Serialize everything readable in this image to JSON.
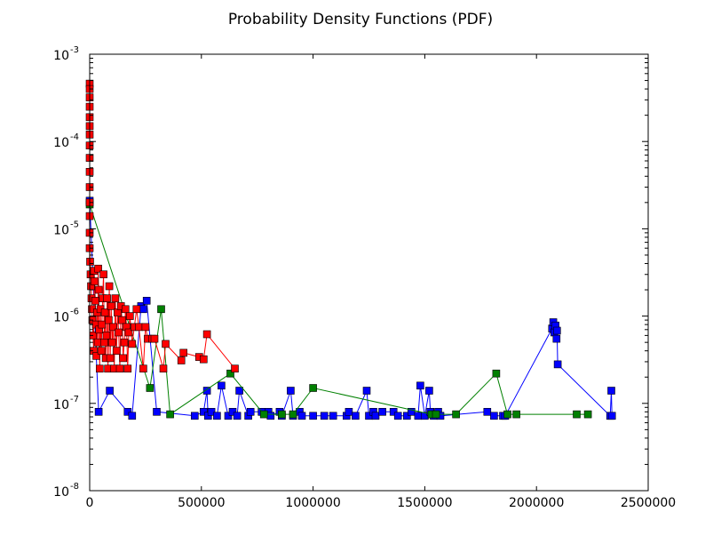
{
  "chart_data": {
    "type": "scatter",
    "title": "Probability Density Functions (PDF)",
    "xlabel": "",
    "ylabel": "",
    "xlim": [
      0,
      2500000
    ],
    "ylim": [
      1e-08,
      0.001
    ],
    "yscale": "log",
    "grid": false,
    "x_ticks": [
      0,
      500000,
      1000000,
      1500000,
      2000000,
      2500000
    ],
    "x_tick_labels": [
      "0",
      "500000",
      "1000000",
      "1500000",
      "2000000",
      "2500000"
    ],
    "y_ticks": [
      {
        "value": 1e-08,
        "base": "10",
        "exp": "-8"
      },
      {
        "value": 1e-07,
        "base": "10",
        "exp": "-7"
      },
      {
        "value": 1e-06,
        "base": "10",
        "exp": "-6"
      },
      {
        "value": 1e-05,
        "base": "10",
        "exp": "-5"
      },
      {
        "value": 0.0001,
        "base": "10",
        "exp": "-4"
      },
      {
        "value": 0.001,
        "base": "10",
        "exp": "-3"
      }
    ],
    "series": [
      {
        "color": "#0000ff",
        "marker": "square",
        "line": true,
        "points": [
          [
            0,
            2.1e-05
          ],
          [
            40000,
            8e-08
          ],
          [
            90000,
            1.4e-07
          ],
          [
            170000,
            8e-08
          ],
          [
            190000,
            7.2e-08
          ],
          [
            230000,
            1.3e-06
          ],
          [
            240000,
            1.2e-06
          ],
          [
            255000,
            1.5e-06
          ],
          [
            300000,
            8e-08
          ],
          [
            470000,
            7.2e-08
          ],
          [
            510000,
            8e-08
          ],
          [
            525000,
            1.4e-07
          ],
          [
            530000,
            7.2e-08
          ],
          [
            545000,
            8e-08
          ],
          [
            570000,
            7.2e-08
          ],
          [
            590000,
            1.6e-07
          ],
          [
            620000,
            7.2e-08
          ],
          [
            640000,
            8e-08
          ],
          [
            660000,
            7.2e-08
          ],
          [
            670000,
            1.4e-07
          ],
          [
            710000,
            7.2e-08
          ],
          [
            720000,
            8e-08
          ],
          [
            770000,
            8e-08
          ],
          [
            800000,
            8e-08
          ],
          [
            810000,
            7.2e-08
          ],
          [
            850000,
            8e-08
          ],
          [
            860000,
            7.2e-08
          ],
          [
            900000,
            1.4e-07
          ],
          [
            910000,
            7.2e-08
          ],
          [
            940000,
            8e-08
          ],
          [
            950000,
            7.2e-08
          ],
          [
            1000000,
            7.2e-08
          ],
          [
            1050000,
            7.2e-08
          ],
          [
            1090000,
            7.2e-08
          ],
          [
            1150000,
            7.2e-08
          ],
          [
            1160000,
            8e-08
          ],
          [
            1190000,
            7.2e-08
          ],
          [
            1240000,
            1.4e-07
          ],
          [
            1250000,
            7.2e-08
          ],
          [
            1270000,
            8e-08
          ],
          [
            1280000,
            7.2e-08
          ],
          [
            1310000,
            8e-08
          ],
          [
            1360000,
            8e-08
          ],
          [
            1380000,
            7.2e-08
          ],
          [
            1420000,
            7.2e-08
          ],
          [
            1440000,
            8e-08
          ],
          [
            1470000,
            7.2e-08
          ],
          [
            1480000,
            1.6e-07
          ],
          [
            1500000,
            7.2e-08
          ],
          [
            1520000,
            1.4e-07
          ],
          [
            1525000,
            8e-08
          ],
          [
            1540000,
            7.2e-08
          ],
          [
            1560000,
            8e-08
          ],
          [
            1570000,
            7.2e-08
          ],
          [
            1780000,
            8e-08
          ],
          [
            1810000,
            7.2e-08
          ],
          [
            1850000,
            7.2e-08
          ],
          [
            1860000,
            7.2e-08
          ],
          [
            2070000,
            7.2e-07
          ],
          [
            2075000,
            8.5e-07
          ],
          [
            2080000,
            6.5e-07
          ],
          [
            2085000,
            7.8e-07
          ],
          [
            2090000,
            5.5e-07
          ],
          [
            2092000,
            6.8e-07
          ],
          [
            2095000,
            2.8e-07
          ],
          [
            2330000,
            7.2e-08
          ],
          [
            2335000,
            1.4e-07
          ],
          [
            2338000,
            7.2e-08
          ]
        ]
      },
      {
        "color": "#008000",
        "marker": "square",
        "line": true,
        "points": [
          [
            0,
            1.9e-05
          ],
          [
            270000,
            1.5e-07
          ],
          [
            320000,
            1.2e-06
          ],
          [
            360000,
            7.5e-08
          ],
          [
            630000,
            2.2e-07
          ],
          [
            780000,
            7.5e-08
          ],
          [
            860000,
            7.5e-08
          ],
          [
            910000,
            7.5e-08
          ],
          [
            1000000,
            1.5e-07
          ],
          [
            1530000,
            7.5e-08
          ],
          [
            1550000,
            7.5e-08
          ],
          [
            1640000,
            7.5e-08
          ],
          [
            1820000,
            2.2e-07
          ],
          [
            1870000,
            7.5e-08
          ],
          [
            1910000,
            7.5e-08
          ],
          [
            2180000,
            7.5e-08
          ],
          [
            2230000,
            7.5e-08
          ]
        ]
      },
      {
        "color": "#ff0000",
        "marker": "square",
        "line": true,
        "points": [
          [
            0,
            0.00046
          ],
          [
            0,
            0.0004
          ],
          [
            0,
            0.00032
          ],
          [
            0,
            0.00025
          ],
          [
            0,
            0.00019
          ],
          [
            0,
            0.00015
          ],
          [
            0,
            0.00012
          ],
          [
            0,
            9e-05
          ],
          [
            0,
            6.5e-05
          ],
          [
            0,
            4.5e-05
          ],
          [
            0,
            3e-05
          ],
          [
            0,
            2e-05
          ],
          [
            0,
            1.4e-05
          ],
          [
            0,
            9e-06
          ],
          [
            0,
            6e-06
          ],
          [
            2000,
            4.2e-06
          ],
          [
            4000,
            3e-06
          ],
          [
            6000,
            2.2e-06
          ],
          [
            8000,
            1.6e-06
          ],
          [
            10000,
            1.2e-06
          ],
          [
            12000,
            9e-07
          ],
          [
            15000,
            6e-07
          ],
          [
            18000,
            4e-07
          ],
          [
            20000,
            3.3e-06
          ],
          [
            22000,
            2.5e-06
          ],
          [
            25000,
            1.5e-06
          ],
          [
            28000,
            8e-07
          ],
          [
            30000,
            3.5e-07
          ],
          [
            33000,
            1.1e-06
          ],
          [
            36000,
            5e-07
          ],
          [
            38000,
            3.5e-06
          ],
          [
            40000,
            2e-06
          ],
          [
            42000,
            7e-07
          ],
          [
            45000,
            2.5e-07
          ],
          [
            48000,
            1.2e-06
          ],
          [
            52000,
            4e-07
          ],
          [
            55000,
            8e-07
          ],
          [
            58000,
            1.6e-06
          ],
          [
            62000,
            3e-06
          ],
          [
            65000,
            5e-07
          ],
          [
            68000,
            1.1e-06
          ],
          [
            72000,
            3.3e-07
          ],
          [
            75000,
            6e-07
          ],
          [
            78000,
            1.6e-06
          ],
          [
            82000,
            2.5e-07
          ],
          [
            85000,
            9e-07
          ],
          [
            88000,
            2.2e-06
          ],
          [
            92000,
            3.3e-07
          ],
          [
            96000,
            1.3e-06
          ],
          [
            100000,
            5e-07
          ],
          [
            105000,
            7.5e-07
          ],
          [
            110000,
            2.5e-07
          ],
          [
            115000,
            1.6e-06
          ],
          [
            120000,
            4e-07
          ],
          [
            125000,
            1.1e-06
          ],
          [
            130000,
            6.5e-07
          ],
          [
            135000,
            2.5e-07
          ],
          [
            140000,
            1.3e-06
          ],
          [
            145000,
            9e-07
          ],
          [
            150000,
            3.3e-07
          ],
          [
            155000,
            5e-07
          ],
          [
            160000,
            1.2e-06
          ],
          [
            165000,
            7.5e-07
          ],
          [
            170000,
            2.5e-07
          ],
          [
            175000,
            6.5e-07
          ],
          [
            180000,
            1e-06
          ],
          [
            190000,
            4.8e-07
          ],
          [
            200000,
            7.5e-07
          ],
          [
            210000,
            1.2e-06
          ],
          [
            220000,
            7.5e-07
          ],
          [
            240000,
            2.5e-07
          ],
          [
            250000,
            7.5e-07
          ],
          [
            260000,
            5.5e-07
          ],
          [
            280000,
            5.5e-07
          ],
          [
            290000,
            5.5e-07
          ],
          [
            330000,
            2.5e-07
          ],
          [
            340000,
            4.8e-07
          ],
          [
            410000,
            3.1e-07
          ],
          [
            420000,
            3.8e-07
          ],
          [
            490000,
            3.4e-07
          ],
          [
            510000,
            3.2e-07
          ],
          [
            525000,
            6.2e-07
          ],
          [
            650000,
            2.5e-07
          ]
        ]
      }
    ]
  }
}
